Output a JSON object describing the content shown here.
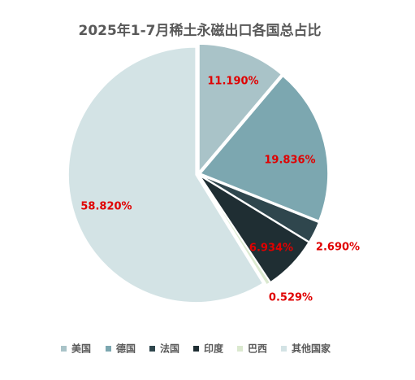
{
  "chart_data": {
    "type": "pie",
    "title": "2025年1-7月稀土永磁出口各国总占比",
    "unit": "%",
    "label_color": "#e00000",
    "slices": [
      {
        "name": "美国",
        "value": 11.19,
        "label": "11.190%",
        "color": "#a9c3c8"
      },
      {
        "name": "德国",
        "value": 19.836,
        "label": "19.836%",
        "color": "#7ca7b0"
      },
      {
        "name": "法国",
        "value": 2.69,
        "label": "2.690%",
        "color": "#2f464d"
      },
      {
        "name": "印度",
        "value": 6.934,
        "label": "6.934%",
        "color": "#1f2e33"
      },
      {
        "name": "巴西",
        "value": 0.529,
        "label": "0.529%",
        "color": "#dbe9cf"
      },
      {
        "name": "其他国家",
        "value": 58.82,
        "label": "58.820%",
        "color": "#d3e3e5"
      }
    ],
    "legend_position": "bottom"
  }
}
